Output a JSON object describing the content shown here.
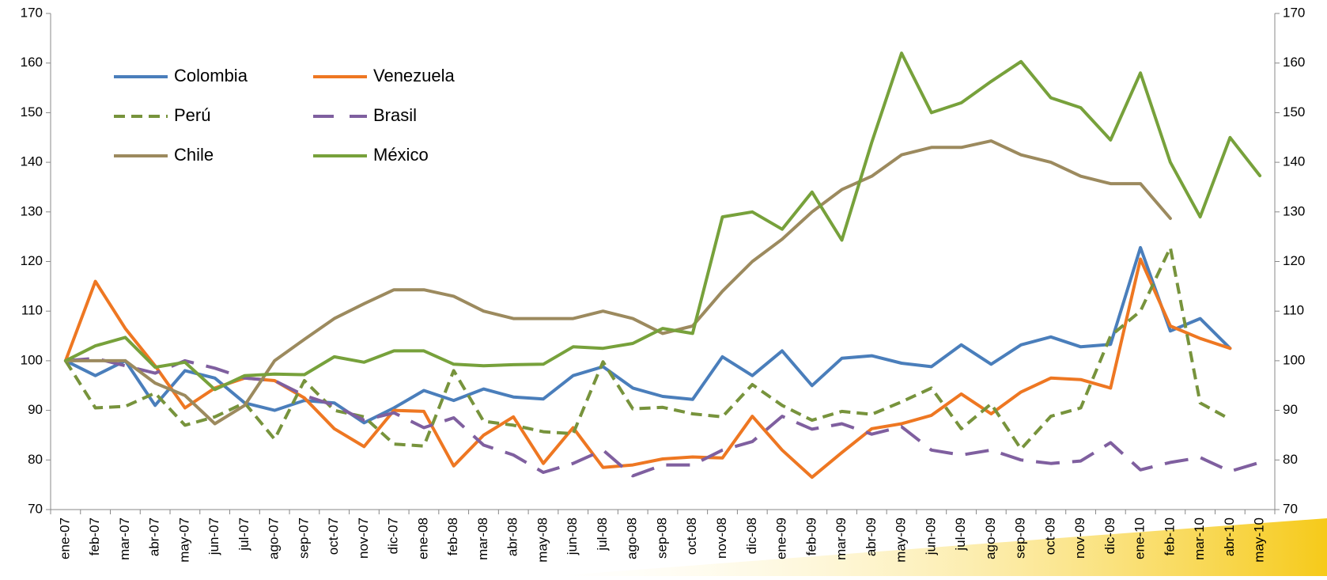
{
  "chart_data": {
    "type": "line",
    "categories": [
      "ene-07",
      "feb-07",
      "mar-07",
      "abr-07",
      "may-07",
      "jun-07",
      "jul-07",
      "ago-07",
      "sep-07",
      "oct-07",
      "nov-07",
      "dic-07",
      "ene-08",
      "feb-08",
      "mar-08",
      "abr-08",
      "may-08",
      "jun-08",
      "jul-08",
      "ago-08",
      "sep-08",
      "oct-08",
      "nov-08",
      "dic-08",
      "ene-09",
      "feb-09",
      "mar-09",
      "abr-09",
      "may-09",
      "jun-09",
      "jul-09",
      "ago-09",
      "sep-09",
      "oct-09",
      "nov-09",
      "dic-09",
      "ene-10",
      "feb-10",
      "mar-10",
      "abr-10",
      "may-10"
    ],
    "series": [
      {
        "name": "Colombia",
        "color": "#4a7ebb",
        "dash": "solid",
        "values": [
          100,
          97,
          100,
          91,
          98,
          96.5,
          91.5,
          90,
          92,
          91.5,
          87.5,
          90.5,
          94,
          92,
          94.3,
          92.7,
          92.3,
          97,
          98.8,
          94.5,
          92.8,
          92.2,
          100.8,
          97,
          102,
          95,
          100.5,
          101,
          99.5,
          98.8,
          103.2,
          99.3,
          103.2,
          104.8,
          102.8,
          103.3,
          122.8,
          106,
          108.5,
          102.5,
          null
        ]
      },
      {
        "name": "Venezuela",
        "color": "#ee7722",
        "dash": "solid",
        "values": [
          100,
          116,
          106.5,
          99,
          90.5,
          94.5,
          96.5,
          96,
          92.5,
          86.3,
          82.7,
          90,
          89.8,
          78.8,
          85,
          88.7,
          79.3,
          86.5,
          78.5,
          79,
          80.2,
          80.6,
          80.4,
          88.8,
          82,
          76.5,
          81.5,
          86.3,
          87.3,
          89,
          93.3,
          89.3,
          93.7,
          96.5,
          96.2,
          94.5,
          120.5,
          107,
          104.5,
          102.5,
          null
        ]
      },
      {
        "name": "Perú",
        "color": "#77933c",
        "dash": "dashed",
        "values": [
          100,
          90.5,
          90.8,
          93.5,
          87,
          88.7,
          91.5,
          84.2,
          96,
          90,
          88.7,
          83.2,
          82.8,
          98,
          87.8,
          87,
          85.7,
          85.3,
          99.8,
          90.3,
          90.6,
          89.3,
          88.7,
          95.2,
          91,
          88,
          89.8,
          89.2,
          91.7,
          94.5,
          86.3,
          91.3,
          82.2,
          88.8,
          90.5,
          105,
          110,
          122.8,
          91.5,
          88.2,
          null
        ]
      },
      {
        "name": "Brasil",
        "color": "#7f5f9f",
        "dash": "long-dashed",
        "values": [
          100,
          100.5,
          99,
          97.5,
          100,
          98.5,
          96.5,
          96,
          93,
          91,
          88,
          89.5,
          86.5,
          88.5,
          83,
          81,
          77.5,
          79.3,
          82,
          76.8,
          79,
          79,
          82,
          83.7,
          88.8,
          86.2,
          87.3,
          85.2,
          86.7,
          82,
          81,
          82,
          80,
          79.3,
          79.8,
          83.5,
          78,
          79.5,
          80.5,
          77.7,
          79.5
        ]
      },
      {
        "name": "Chile",
        "color": "#9c8a5e",
        "dash": "solid",
        "values": [
          100,
          100,
          100,
          95.5,
          93,
          87.3,
          91,
          100,
          104.3,
          108.5,
          111.5,
          114.3,
          114.3,
          113,
          110,
          108.5,
          108.5,
          108.5,
          110,
          108.5,
          105.5,
          107,
          114,
          120,
          124.5,
          130,
          134.5,
          137.2,
          141.5,
          143,
          143,
          144.3,
          141.5,
          140,
          137.2,
          135.7,
          135.7,
          128.7,
          null,
          null,
          null
        ]
      },
      {
        "name": "México",
        "color": "#77a13b",
        "dash": "solid",
        "values": [
          100,
          103,
          104.7,
          98.7,
          99.7,
          94.2,
          97,
          97.3,
          97.2,
          100.8,
          99.7,
          102,
          102,
          99.3,
          99,
          99.2,
          99.3,
          102.8,
          102.5,
          103.5,
          106.5,
          105.5,
          129,
          130,
          126.5,
          134,
          124.3,
          144,
          162,
          150,
          152,
          156.3,
          160.3,
          153,
          151,
          144.5,
          158,
          140,
          129,
          145,
          137.3
        ]
      }
    ],
    "ylim": [
      70,
      170
    ],
    "yticks": [
      70,
      80,
      90,
      100,
      110,
      120,
      130,
      140,
      150,
      160,
      170
    ],
    "y2lim": [
      70,
      170
    ],
    "y2ticks": [
      70,
      80,
      90,
      100,
      110,
      120,
      130,
      140,
      150,
      160,
      170
    ],
    "legend": "upper left",
    "grid": false
  }
}
